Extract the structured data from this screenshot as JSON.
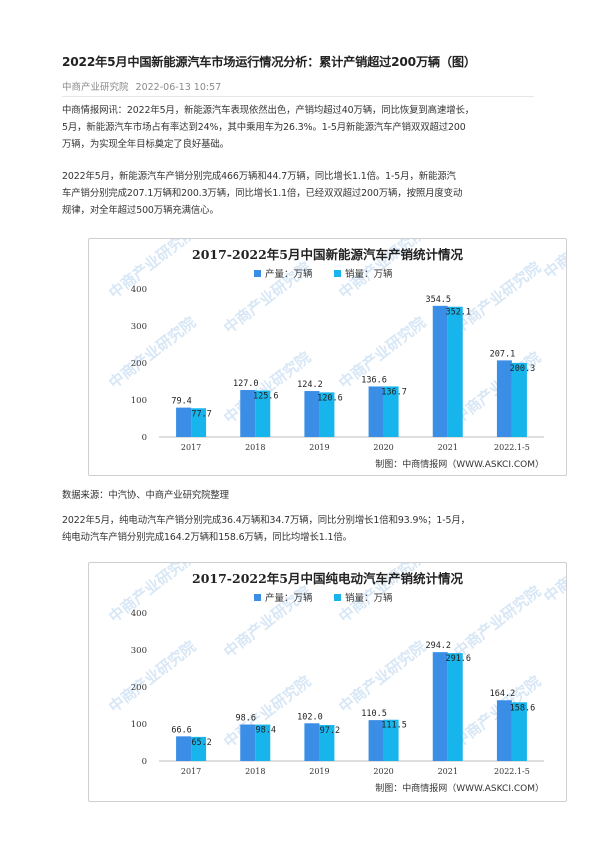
{
  "article": {
    "title": "2022年5月中国新能源汽车市场运行情况分析：累计产销超过200万辆（图）",
    "source": "中商产业研究院",
    "date": "2022-06-13 10:57",
    "paragraphs": [
      [
        "中商情报网讯：2022年5月，新能源汽车表现依然出色，产销均超过40万辆，同比恢复到高速增长，",
        "5月，新能源汽车市场占有率达到24%，其中乘用车为26.3%。1-5月新能源汽车产销双双超过200",
        "万辆，为实现全年目标奠定了良好基础。"
      ],
      [
        "2022年5月，新能源汽车产销分别完成466万辆和44.7万辆，同比增长1.1倍。1-5月，新能源汽",
        "车产销分别完成207.1万辆和200.3万辆，同比增长1.1倍，已经双双超过200万辆，按照月度变动",
        "规律，对全年超过500万辆充满信心。"
      ],
      [
        "数据来源：中汽协、中商产业研究院整理"
      ],
      [
        "2022年5月，纯电动汽车产销分别完成36.4万辆和34.7万辆，同比分别增长1倍和93.9%；1-5月，",
        "纯电动汽车产销分别完成164.2万辆和158.6万辆，同比均增长1.1倍。"
      ]
    ]
  },
  "chart_data": [
    {
      "type": "bar",
      "title": "2017-2022年5月中国新能源汽车产销统计情况",
      "categories": [
        "2017",
        "2018",
        "2019",
        "2020",
        "2021",
        "2022.1-5"
      ],
      "series": [
        {
          "name": "产量：万辆",
          "values": [
            79.4,
            127.0,
            124.2,
            136.6,
            354.5,
            207.1
          ],
          "labels": [
            "79.4",
            "127.0",
            "124.2",
            "136.6",
            "354.5",
            "207.1"
          ]
        },
        {
          "name": "销量：万辆",
          "values": [
            77.7,
            125.6,
            120.6,
            136.7,
            352.1,
            200.3
          ],
          "labels": [
            "77.7",
            "125.6",
            "120.6",
            "136.7",
            "352.1",
            "200.3"
          ]
        }
      ],
      "ylim": [
        0,
        400
      ],
      "yticks": [
        "0",
        "100",
        "200",
        "300",
        "400"
      ],
      "legend": "top-center",
      "grid": false,
      "credit": "制图：中商情报网（WWW.ASKCI.COM）",
      "watermark": "中商产业研究院",
      "colors": [
        "#3a8ee6",
        "#18b4ec"
      ]
    },
    {
      "type": "bar",
      "title": "2017-2022年5月中国纯电动汽车产销统计情况",
      "categories": [
        "2017",
        "2018",
        "2019",
        "2020",
        "2021",
        "2022.1-5"
      ],
      "series": [
        {
          "name": "产量：万辆",
          "values": [
            66.6,
            98.6,
            102.0,
            110.5,
            294.2,
            164.2
          ],
          "labels": [
            "66.6",
            "98.6",
            "102.0",
            "110.5",
            "294.2",
            "164.2"
          ]
        },
        {
          "name": "销量：万辆",
          "values": [
            65.2,
            98.4,
            97.2,
            111.5,
            291.6,
            158.6
          ],
          "labels": [
            "65.2",
            "98.4",
            "97.2",
            "111.5",
            "291.6",
            "158.6"
          ]
        }
      ],
      "ylim": [
        0,
        400
      ],
      "yticks": [
        "0",
        "100",
        "200",
        "300",
        "400"
      ],
      "legend": "top-center",
      "grid": false,
      "credit": "制图：中商情报网（WWW.ASKCI.COM）",
      "watermark": "中商产业研究院",
      "colors": [
        "#3a8ee6",
        "#18b4ec"
      ]
    }
  ]
}
